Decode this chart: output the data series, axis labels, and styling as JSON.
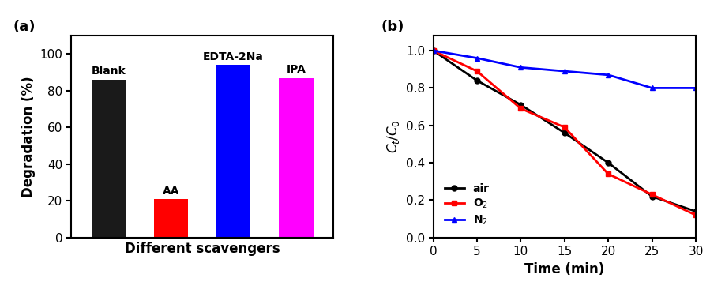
{
  "panel_a": {
    "categories": [
      "Blank",
      "AA",
      "EDTA-2Na",
      "IPA"
    ],
    "values": [
      86,
      21,
      94,
      87
    ],
    "colors": [
      "#1a1a1a",
      "#ff0000",
      "#0000ff",
      "#ff00ff"
    ],
    "ylabel": "Degradation (%)",
    "xlabel": "Different scavengers",
    "ylim": [
      0,
      110
    ],
    "yticks": [
      0,
      20,
      40,
      60,
      80,
      100
    ],
    "label": "(a)"
  },
  "panel_b": {
    "time": [
      0,
      5,
      10,
      15,
      20,
      25,
      30
    ],
    "air": [
      1.0,
      0.84,
      0.71,
      0.56,
      0.4,
      0.22,
      0.14
    ],
    "o2": [
      1.0,
      0.89,
      0.69,
      0.59,
      0.34,
      0.23,
      0.12
    ],
    "n2": [
      1.0,
      0.96,
      0.91,
      0.89,
      0.87,
      0.8,
      0.8
    ],
    "air_color": "#000000",
    "o2_color": "#ff0000",
    "n2_color": "#0000ff",
    "ylabel": "$C_t/C_0$",
    "xlabel": "Time (min)",
    "ylim": [
      0.0,
      1.08
    ],
    "yticks": [
      0.0,
      0.2,
      0.4,
      0.6,
      0.8,
      1.0
    ],
    "xticks": [
      0,
      5,
      10,
      15,
      20,
      25,
      30
    ],
    "label": "(b)"
  }
}
